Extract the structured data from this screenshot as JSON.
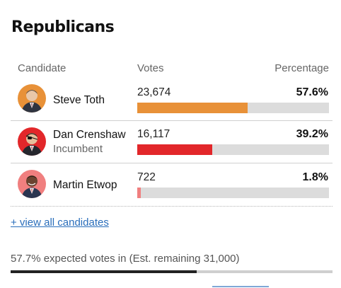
{
  "section": {
    "title": "Republicans"
  },
  "headers": {
    "candidate": "Candidate",
    "votes": "Votes",
    "percentage": "Percentage"
  },
  "candidates": [
    {
      "name": "Steve Toth",
      "subtitle": "",
      "votes": "23,674",
      "percentage": "57.6%",
      "share": 0.576,
      "color": "#e89138",
      "icon": "candidate-photo"
    },
    {
      "name": "Dan Crenshaw",
      "subtitle": "Incumbent",
      "votes": "16,117",
      "percentage": "39.2%",
      "share": 0.392,
      "color": "#e2272a",
      "icon": "candidate-photo"
    },
    {
      "name": "Martin Etwop",
      "subtitle": "",
      "votes": "722",
      "percentage": "1.8%",
      "share": 0.018,
      "color": "#f07f7f",
      "icon": "candidate-photo"
    }
  ],
  "view_all_link": "+ view all candidates",
  "expected": {
    "text": "57.7% expected votes in (Est. remaining 31,000)",
    "share": 0.577,
    "color": "#222222"
  }
}
